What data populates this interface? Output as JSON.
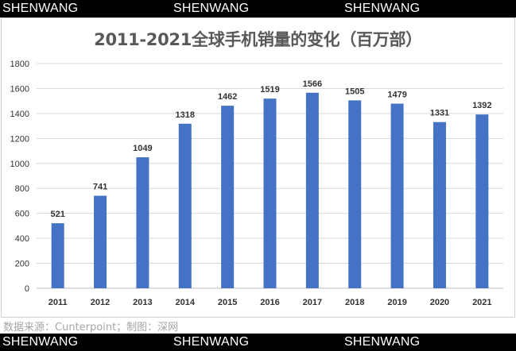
{
  "watermark": "SHENWANG",
  "source_note": "数据来源：Cunterpoint；制图：深网",
  "colors": {
    "bar": "#4472c4",
    "grid": "#d9d9d9",
    "band": "#000000"
  },
  "chart_data": {
    "type": "bar",
    "title": "2011-2021全球手机销量的变化（百万部）",
    "categories": [
      "2011",
      "2012",
      "2013",
      "2014",
      "2015",
      "2016",
      "2017",
      "2018",
      "2019",
      "2020",
      "2021"
    ],
    "values": [
      521,
      741,
      1049,
      1318,
      1462,
      1519,
      1566,
      1505,
      1479,
      1331,
      1392
    ],
    "ylim": [
      0,
      1800
    ],
    "yticks": [
      "0",
      "200",
      "400",
      "600",
      "800",
      "1000",
      "1200",
      "1400",
      "1600",
      "1800"
    ],
    "grid": true,
    "legend": "none",
    "data_labels": true
  }
}
